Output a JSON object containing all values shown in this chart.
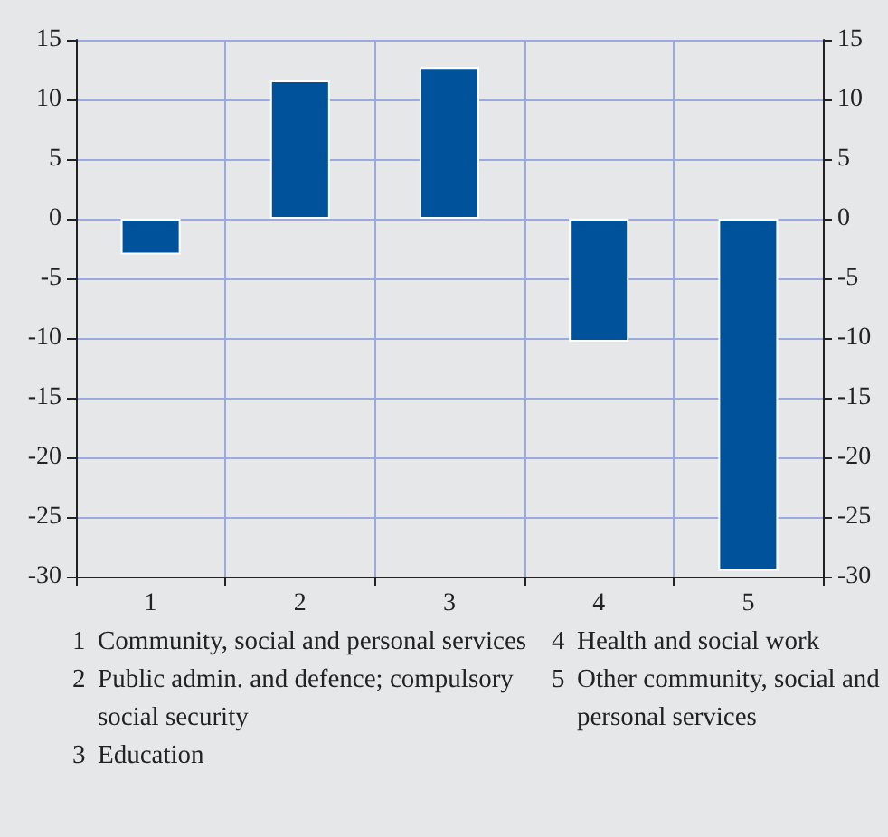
{
  "chart_data": {
    "type": "bar",
    "categories": [
      "1",
      "2",
      "3",
      "4",
      "5"
    ],
    "values": [
      -3,
      11.6,
      12.7,
      -10.3,
      -29.5
    ],
    "color": "#00529b",
    "ylim": [
      -30,
      15
    ],
    "yticks": [
      -30,
      -25,
      -20,
      -15,
      -10,
      -5,
      0,
      5,
      10,
      15
    ],
    "y2lim": [
      -30,
      15
    ],
    "y2ticks": [
      -30,
      -25,
      -20,
      -15,
      -10,
      -5,
      0,
      5,
      10,
      15
    ],
    "grid": true,
    "annotations": [
      "1 Community, social and personal services",
      "2 Public admin. and defence; compulsory social security",
      "3 Education",
      "4 Health and social work",
      "5 Other community, social and personal services"
    ]
  }
}
